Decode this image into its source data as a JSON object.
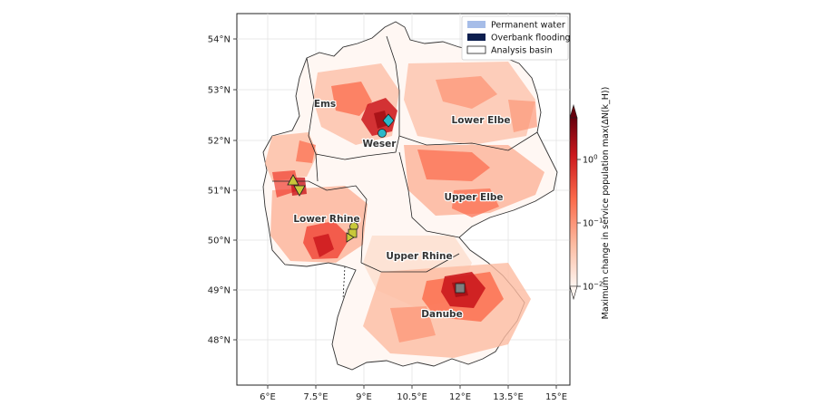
{
  "map": {
    "lon_ticks": [
      "6°E",
      "7.5°E",
      "9°E",
      "10.5°E",
      "12°E",
      "13.5°E",
      "15°E"
    ],
    "lat_ticks": [
      "54°N",
      "53°N",
      "52°N",
      "51°N",
      "50°N",
      "49°N",
      "48°N"
    ],
    "basins": [
      {
        "name": "Ems"
      },
      {
        "name": "Weser"
      },
      {
        "name": "Lower Elbe"
      },
      {
        "name": "Upper Elbe"
      },
      {
        "name": "Lower Rhine"
      },
      {
        "name": "Upper Rhine"
      },
      {
        "name": "Danube"
      }
    ],
    "legend": [
      {
        "label": "Permanent water",
        "color": "#a6bde8"
      },
      {
        "label": "Overbank flooding",
        "color": "#0d1f4f"
      },
      {
        "label": "Analysis basin",
        "color": "#ffffff"
      }
    ],
    "colorbar": {
      "label": "Maximum change in service population max(ΔN(k_H))",
      "ticks": [
        "10^0",
        "10^-1",
        "10^-2"
      ],
      "colors": [
        "#67000d",
        "#cb181d",
        "#fb6a4a",
        "#fcbba1",
        "#fff5f0"
      ]
    },
    "markers": [
      {
        "shape": "diamond",
        "color": "#2bb8c8"
      },
      {
        "shape": "circle",
        "color": "#2bb8c8"
      },
      {
        "shape": "triangle-up",
        "color": "#c8c83a"
      },
      {
        "shape": "triangle-down",
        "color": "#c8c83a"
      },
      {
        "shape": "circle",
        "color": "#c8c83a"
      },
      {
        "shape": "square",
        "color": "#c8c83a"
      },
      {
        "shape": "bowtie",
        "color": "#c8c83a"
      },
      {
        "shape": "square",
        "color": "#7f7f7f"
      }
    ]
  }
}
